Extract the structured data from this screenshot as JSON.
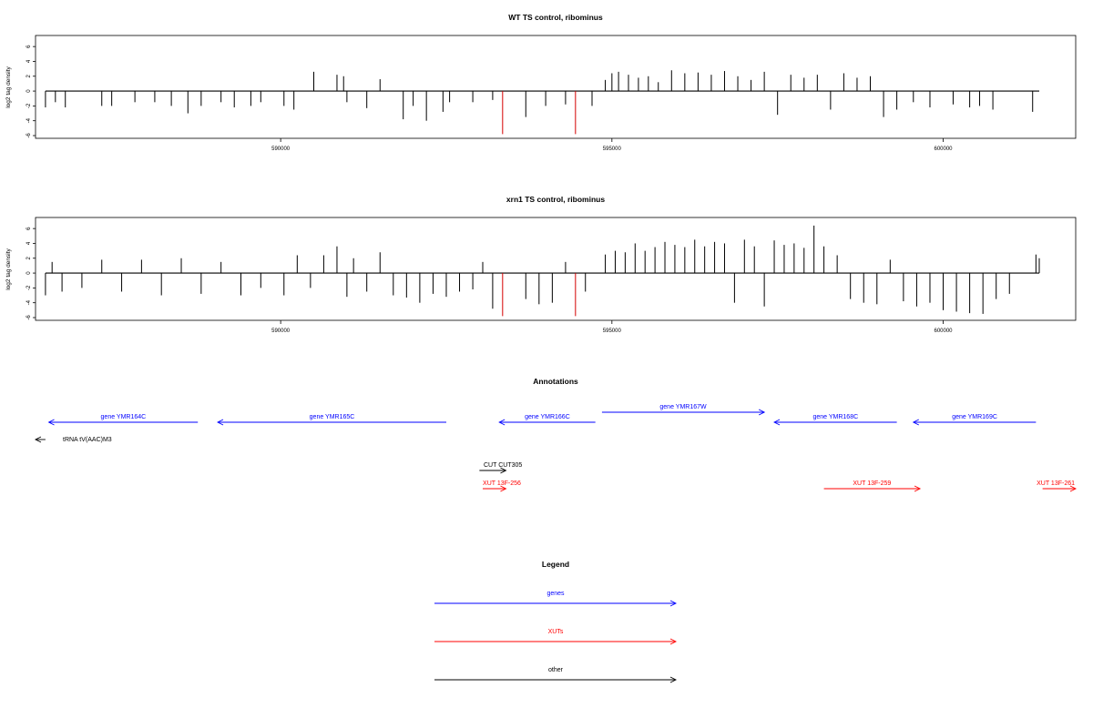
{
  "chart_data": [
    {
      "type": "bar",
      "title": "WT TS control, ribominus",
      "ylabel": "log2 tag density",
      "xlim": [
        586300,
        602000
      ],
      "ylim": [
        -6,
        7
      ],
      "x_ticks": [
        "590000",
        "595000",
        "600000"
      ],
      "y_ticks": [
        "6",
        "4",
        "2",
        "0",
        "-2",
        "-4",
        "-6"
      ],
      "series": [
        {
          "color": "#000000",
          "x": [
            586450,
            586600,
            586750,
            587300,
            587450,
            587800,
            588100,
            588350,
            588600,
            588800,
            589100,
            589300,
            589550,
            589700,
            590050,
            590200,
            590500,
            590850,
            590950,
            591000,
            591300,
            591500,
            591850,
            592000,
            592200,
            592450,
            592550,
            592900,
            593200,
            593700,
            594000,
            594300,
            594700,
            594900,
            595000,
            595100,
            595250,
            595400,
            595550,
            595700,
            595900,
            596100,
            596300,
            596500,
            596700,
            596900,
            597100,
            597300,
            597500,
            597700,
            597900,
            598100,
            598300,
            598500,
            598700,
            598900,
            599100,
            599300,
            599550,
            599800,
            600150,
            600400,
            600550,
            600750,
            601350
          ],
          "y": [
            -2.2,
            -1.5,
            -2.2,
            -2,
            -2,
            -1.5,
            -1.5,
            -2,
            -3,
            -2,
            -1.5,
            -2.2,
            -2,
            -1.5,
            -2,
            -2.5,
            2.6,
            2.2,
            2,
            -1.5,
            -2.3,
            1.6,
            -3.8,
            -2,
            -4,
            -2.8,
            -1.5,
            -1.5,
            -1.2,
            -3.5,
            -2,
            -1.8,
            -2,
            1.5,
            2.4,
            2.6,
            2.2,
            1.8,
            2,
            1.2,
            2.8,
            2.4,
            2.5,
            2.2,
            2.7,
            2,
            1.5,
            2.6,
            -3.2,
            2.2,
            1.8,
            2.2,
            -2.5,
            2.4,
            1.8,
            2,
            -3.5,
            -2.5,
            -1.5,
            -2.2,
            -1.8,
            -2.2,
            -2,
            -2.5,
            -2.8
          ]
        },
        {
          "color": "#d40000",
          "x": [
            593350,
            594450
          ],
          "y": [
            -5.8,
            -5.8
          ]
        }
      ]
    },
    {
      "type": "bar",
      "title": "xrn1 TS control, ribominus",
      "ylabel": "log2 tag density",
      "xlim": [
        586300,
        602000
      ],
      "ylim": [
        -6,
        7
      ],
      "x_ticks": [
        "590000",
        "595000",
        "600000"
      ],
      "y_ticks": [
        "6",
        "4",
        "2",
        "0",
        "-2",
        "-4",
        "-6"
      ],
      "series": [
        {
          "color": "#000000",
          "x": [
            586450,
            586550,
            586700,
            587000,
            587300,
            587600,
            587900,
            588200,
            588500,
            588800,
            589100,
            589400,
            589700,
            590050,
            590250,
            590450,
            590650,
            590850,
            591000,
            591100,
            591300,
            591500,
            591700,
            591900,
            592100,
            592300,
            592500,
            592700,
            592900,
            593050,
            593200,
            593700,
            593900,
            594100,
            594300,
            594600,
            594900,
            595050,
            595200,
            595350,
            595500,
            595650,
            595800,
            595950,
            596100,
            596250,
            596400,
            596550,
            596700,
            596850,
            597000,
            597150,
            597300,
            597450,
            597600,
            597750,
            597900,
            598050,
            598200,
            598400,
            598600,
            598800,
            599000,
            599200,
            599400,
            599600,
            599800,
            600000,
            600200,
            600400,
            600600,
            600800,
            601000,
            601400,
            601450
          ],
          "y": [
            -3,
            1.5,
            -2.5,
            -2,
            1.8,
            -2.5,
            1.8,
            -3,
            2,
            -2.8,
            1.5,
            -3,
            -2,
            -3,
            2.4,
            -2,
            2.4,
            3.6,
            -3.2,
            2,
            -2.5,
            2.8,
            -3,
            -3.3,
            -4,
            -2.8,
            -3.2,
            -2.5,
            -2.2,
            1.5,
            -4.8,
            -3.5,
            -4.2,
            -4,
            1.5,
            -2.5,
            2.5,
            3,
            2.8,
            4,
            3,
            3.5,
            4.2,
            3.8,
            3.5,
            4.5,
            3.6,
            4.2,
            4,
            -4,
            4.5,
            3.6,
            -4.5,
            4.4,
            3.8,
            4,
            3.4,
            6.4,
            3.6,
            2.4,
            -3.5,
            -4,
            -4.2,
            1.8,
            -3.8,
            -4.5,
            -4,
            -5,
            -5.2,
            -5.4,
            -5.5,
            -3.5,
            -2.8,
            2.5,
            2
          ]
        },
        {
          "color": "#d40000",
          "x": [
            593350,
            594450
          ],
          "y": [
            -5.8,
            -5.8
          ]
        }
      ]
    }
  ],
  "annotations": {
    "title": "Annotations",
    "features": [
      {
        "label": "gene YMR164C",
        "type": "gene",
        "start": 586500,
        "end": 588750,
        "strand": "-",
        "row": 1
      },
      {
        "label": "gene YMR165C",
        "type": "gene",
        "start": 589050,
        "end": 592500,
        "strand": "-",
        "row": 1
      },
      {
        "label": "gene YMR166C",
        "type": "gene",
        "start": 593300,
        "end": 594750,
        "strand": "-",
        "row": 1
      },
      {
        "label": "gene YMR167W",
        "type": "gene",
        "start": 594850,
        "end": 597300,
        "strand": "+",
        "row": 0
      },
      {
        "label": "gene YMR168C",
        "type": "gene",
        "start": 597450,
        "end": 599300,
        "strand": "-",
        "row": 1
      },
      {
        "label": "gene YMR169C",
        "type": "gene",
        "start": 599550,
        "end": 601400,
        "strand": "-",
        "row": 1
      },
      {
        "label": "tRNA tV(AAC)M3",
        "type": "other",
        "start": 586300,
        "end": 586450,
        "strand": "-",
        "row": 2
      },
      {
        "label": "CUT CUT305",
        "type": "other",
        "start": 593000,
        "end": 593400,
        "strand": "+",
        "row": 3
      },
      {
        "label": "XUT 13F-256",
        "type": "xut",
        "start": 593050,
        "end": 593400,
        "strand": "+",
        "row": 4
      },
      {
        "label": "XUT 13F-259",
        "type": "xut",
        "start": 598200,
        "end": 599650,
        "strand": "+",
        "row": 4
      },
      {
        "label": "XUT 13F-261",
        "type": "xut",
        "start": 601500,
        "end": 602000,
        "strand": "+",
        "row": 4
      }
    ]
  },
  "legend": {
    "title": "Legend",
    "items": [
      {
        "label": "genes",
        "color": "#0000ff"
      },
      {
        "label": "XUTs",
        "color": "#ff0000"
      },
      {
        "label": "other",
        "color": "#000000"
      }
    ]
  },
  "colors": {
    "gene": "#0000ff",
    "xut": "#ff0000",
    "other": "#000000"
  }
}
